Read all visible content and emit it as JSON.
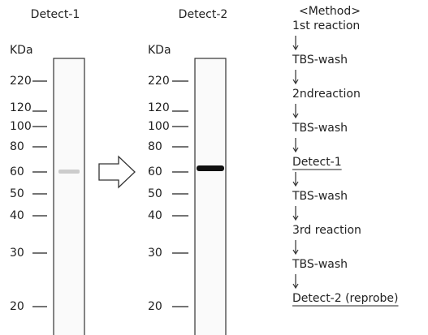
{
  "panels": [
    {
      "title": "Detect-1",
      "unit": "KDa",
      "markers": [
        220,
        120,
        100,
        80,
        60,
        50,
        40,
        30,
        20
      ]
    },
    {
      "title": "Detect-2",
      "unit": "KDa",
      "markers": [
        220,
        120,
        100,
        80,
        60,
        50,
        40,
        30,
        20
      ]
    }
  ],
  "method": {
    "heading": "<Method>",
    "steps": [
      "1st reaction",
      "TBS-wash",
      "2ndreaction",
      "TBS-wash",
      "Detect-1",
      "TBS-wash",
      "3rd reaction",
      "TBS-wash",
      "Detect-2 (reprobe)"
    ]
  }
}
